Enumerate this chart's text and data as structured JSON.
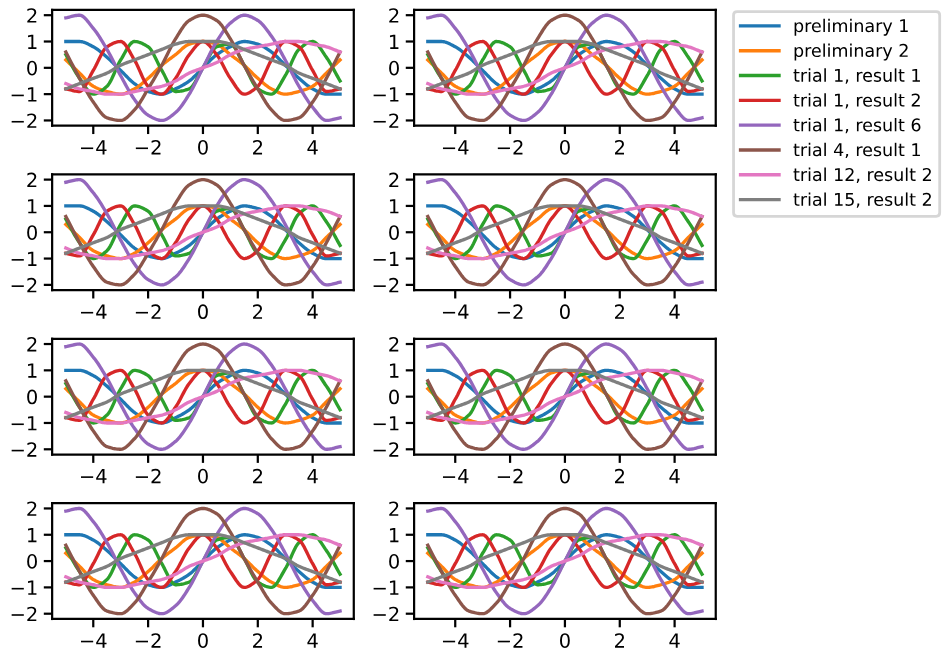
{
  "chart_data": [
    {
      "type": "line",
      "x": [
        -5,
        -4.5,
        -4,
        -3.5,
        -3,
        -2.5,
        -2,
        -1.5,
        -1,
        -0.5,
        0,
        0.5,
        1,
        1.5,
        2,
        2.5,
        3,
        3.5,
        4,
        4.5,
        5
      ],
      "xlim": [
        -5.5,
        5.5
      ],
      "ylim": [
        -2.2,
        2.2
      ],
      "xticks": [
        -4,
        -2,
        0,
        2,
        4
      ],
      "yticks": [
        -2,
        -1,
        0,
        1,
        2
      ],
      "series": [
        {
          "color": "#1f77b4",
          "values": [
            1.0,
            1.0,
            0.8,
            0.4,
            -0.1,
            -0.6,
            -0.9,
            -1.0,
            -0.8,
            -0.5,
            0,
            0.5,
            0.8,
            1.0,
            0.9,
            0.6,
            0.1,
            -0.4,
            -0.8,
            -1.0,
            -1.0
          ]
        },
        {
          "color": "#ff7f0e",
          "values": [
            0.3,
            -0.2,
            -0.7,
            -0.9,
            -1.0,
            -0.8,
            -0.4,
            0.1,
            0.5,
            0.9,
            1.0,
            0.9,
            0.5,
            0.1,
            -0.4,
            -0.8,
            -1.0,
            -0.9,
            -0.7,
            -0.2,
            0.3
          ]
        },
        {
          "color": "#2ca02c",
          "values": [
            0.5,
            -0.4,
            -1.0,
            -0.7,
            0.3,
            1.0,
            0.8,
            -0.1,
            -0.9,
            -0.8,
            0,
            0.8,
            0.9,
            0.1,
            -0.8,
            -1.0,
            -0.3,
            0.7,
            1.0,
            0.4,
            -0.5
          ]
        },
        {
          "color": "#d62728",
          "values": [
            -0.8,
            -0.9,
            -0.1,
            0.8,
            1.0,
            0.3,
            -0.7,
            -1.0,
            -0.4,
            0.5,
            1.0,
            0.5,
            -0.4,
            -1.0,
            -0.7,
            0.3,
            1.0,
            0.8,
            -0.1,
            -0.9,
            -0.8
          ]
        },
        {
          "color": "#9467bd",
          "values": [
            1.9,
            2.0,
            1.5,
            0.7,
            -0.3,
            -1.2,
            -1.8,
            -2.0,
            -1.7,
            -1.0,
            0,
            1.0,
            1.7,
            2.0,
            1.8,
            1.2,
            0.3,
            -0.7,
            -1.5,
            -2.0,
            -1.9
          ]
        },
        {
          "color": "#8c564b",
          "values": [
            0.6,
            -0.4,
            -1.3,
            -1.9,
            -2.0,
            -1.6,
            -0.8,
            0.1,
            1.1,
            1.8,
            2.0,
            1.8,
            1.1,
            0.1,
            -0.8,
            -1.6,
            -2.0,
            -1.9,
            -1.3,
            -0.4,
            0.6
          ]
        },
        {
          "color": "#e377c2",
          "values": [
            -0.6,
            -0.8,
            -0.9,
            -1.0,
            -1.0,
            -0.9,
            -0.8,
            -0.7,
            -0.5,
            -0.2,
            0,
            0.2,
            0.5,
            0.7,
            0.8,
            0.9,
            1.0,
            1.0,
            0.9,
            0.8,
            0.6
          ]
        },
        {
          "color": "#7f7f7f",
          "values": [
            -0.8,
            -0.6,
            -0.4,
            -0.2,
            0.1,
            0.3,
            0.5,
            0.7,
            0.9,
            1.0,
            1.0,
            1.0,
            0.9,
            0.7,
            0.5,
            0.3,
            0.1,
            -0.2,
            -0.4,
            -0.6,
            -0.8
          ]
        }
      ]
    },
    {
      "type": "line",
      "x": [
        -5,
        -4.5,
        -4,
        -3.5,
        -3,
        -2.5,
        -2,
        -1.5,
        -1,
        -0.5,
        0,
        0.5,
        1,
        1.5,
        2,
        2.5,
        3,
        3.5,
        4,
        4.5,
        5
      ],
      "xlim": [
        -5.5,
        5.5
      ],
      "ylim": [
        -2.2,
        2.2
      ],
      "xticks": [
        -4,
        -2,
        0,
        2,
        4
      ],
      "yticks": [
        -2,
        -1,
        0,
        1,
        2
      ],
      "legend": "right",
      "series": [
        {
          "name": "preliminary 1",
          "color": "#1f77b4",
          "values": [
            1.0,
            1.0,
            0.8,
            0.4,
            -0.1,
            -0.6,
            -0.9,
            -1.0,
            -0.8,
            -0.5,
            0,
            0.5,
            0.8,
            1.0,
            0.9,
            0.6,
            0.1,
            -0.4,
            -0.8,
            -1.0,
            -1.0
          ]
        },
        {
          "name": "preliminary 2",
          "color": "#ff7f0e",
          "values": [
            0.3,
            -0.2,
            -0.7,
            -0.9,
            -1.0,
            -0.8,
            -0.4,
            0.1,
            0.5,
            0.9,
            1.0,
            0.9,
            0.5,
            0.1,
            -0.4,
            -0.8,
            -1.0,
            -0.9,
            -0.7,
            -0.2,
            0.3
          ]
        },
        {
          "name": "trial 1, result 1",
          "color": "#2ca02c",
          "values": [
            0.5,
            -0.4,
            -1.0,
            -0.7,
            0.3,
            1.0,
            0.8,
            -0.1,
            -0.9,
            -0.8,
            0,
            0.8,
            0.9,
            0.1,
            -0.8,
            -1.0,
            -0.3,
            0.7,
            1.0,
            0.4,
            -0.5
          ]
        },
        {
          "name": "trial 1, result 2",
          "color": "#d62728",
          "values": [
            -0.8,
            -0.9,
            -0.1,
            0.8,
            1.0,
            0.3,
            -0.7,
            -1.0,
            -0.4,
            0.5,
            1.0,
            0.5,
            -0.4,
            -1.0,
            -0.7,
            0.3,
            1.0,
            0.8,
            -0.1,
            -0.9,
            -0.8
          ]
        },
        {
          "name": "trial 1, result 6",
          "color": "#9467bd",
          "values": [
            1.9,
            2.0,
            1.5,
            0.7,
            -0.3,
            -1.2,
            -1.8,
            -2.0,
            -1.7,
            -1.0,
            0,
            1.0,
            1.7,
            2.0,
            1.8,
            1.2,
            0.3,
            -0.7,
            -1.5,
            -2.0,
            -1.9
          ]
        },
        {
          "name": "trial 4, result 1",
          "color": "#8c564b",
          "values": [
            0.6,
            -0.4,
            -1.3,
            -1.9,
            -2.0,
            -1.6,
            -0.8,
            0.1,
            1.1,
            1.8,
            2.0,
            1.8,
            1.1,
            0.1,
            -0.8,
            -1.6,
            -2.0,
            -1.9,
            -1.3,
            -0.4,
            0.6
          ]
        },
        {
          "name": "trial 12, result 2",
          "color": "#e377c2",
          "values": [
            -0.6,
            -0.8,
            -0.9,
            -1.0,
            -1.0,
            -0.9,
            -0.8,
            -0.7,
            -0.5,
            -0.2,
            0,
            0.2,
            0.5,
            0.7,
            0.8,
            0.9,
            1.0,
            1.0,
            0.9,
            0.8,
            0.6
          ]
        },
        {
          "name": "trial 15, result 2",
          "color": "#7f7f7f",
          "values": [
            -0.8,
            -0.6,
            -0.4,
            -0.2,
            0.1,
            0.3,
            0.5,
            0.7,
            0.9,
            1.0,
            1.0,
            1.0,
            0.9,
            0.7,
            0.5,
            0.3,
            0.1,
            -0.2,
            -0.4,
            -0.6,
            -0.8
          ]
        }
      ]
    },
    {
      "type": "line",
      "x": [
        -5,
        -4.5,
        -4,
        -3.5,
        -3,
        -2.5,
        -2,
        -1.5,
        -1,
        -0.5,
        0,
        0.5,
        1,
        1.5,
        2,
        2.5,
        3,
        3.5,
        4,
        4.5,
        5
      ],
      "xlim": [
        -5.5,
        5.5
      ],
      "ylim": [
        -2.2,
        2.2
      ],
      "xticks": [
        -4,
        -2,
        0,
        2,
        4
      ],
      "yticks": [
        -2,
        -1,
        0,
        1,
        2
      ],
      "series": [
        {
          "color": "#1f77b4",
          "values": [
            1.0,
            1.0,
            0.8,
            0.4,
            -0.1,
            -0.6,
            -0.9,
            -1.0,
            -0.8,
            -0.5,
            0,
            0.5,
            0.8,
            1.0,
            0.9,
            0.6,
            0.1,
            -0.4,
            -0.8,
            -1.0,
            -1.0
          ]
        },
        {
          "color": "#ff7f0e",
          "values": [
            0.3,
            -0.2,
            -0.7,
            -0.9,
            -1.0,
            -0.8,
            -0.4,
            0.1,
            0.5,
            0.9,
            1.0,
            0.9,
            0.5,
            0.1,
            -0.4,
            -0.8,
            -1.0,
            -0.9,
            -0.7,
            -0.2,
            0.3
          ]
        },
        {
          "color": "#2ca02c",
          "values": [
            0.5,
            -0.4,
            -1.0,
            -0.7,
            0.3,
            1.0,
            0.8,
            -0.1,
            -0.9,
            -0.8,
            0,
            0.8,
            0.9,
            0.1,
            -0.8,
            -1.0,
            -0.3,
            0.7,
            1.0,
            0.4,
            -0.5
          ]
        },
        {
          "color": "#d62728",
          "values": [
            -0.8,
            -0.9,
            -0.1,
            0.8,
            1.0,
            0.3,
            -0.7,
            -1.0,
            -0.4,
            0.5,
            1.0,
            0.5,
            -0.4,
            -1.0,
            -0.7,
            0.3,
            1.0,
            0.8,
            -0.1,
            -0.9,
            -0.8
          ]
        },
        {
          "color": "#9467bd",
          "values": [
            1.9,
            2.0,
            1.5,
            0.7,
            -0.3,
            -1.2,
            -1.8,
            -2.0,
            -1.7,
            -1.0,
            0,
            1.0,
            1.7,
            2.0,
            1.8,
            1.2,
            0.3,
            -0.7,
            -1.5,
            -2.0,
            -1.9
          ]
        },
        {
          "color": "#8c564b",
          "values": [
            0.6,
            -0.4,
            -1.3,
            -1.9,
            -2.0,
            -1.6,
            -0.8,
            0.1,
            1.1,
            1.8,
            2.0,
            1.8,
            1.1,
            0.1,
            -0.8,
            -1.6,
            -2.0,
            -1.9,
            -1.3,
            -0.4,
            0.6
          ]
        },
        {
          "color": "#e377c2",
          "values": [
            -0.6,
            -0.8,
            -0.9,
            -1.0,
            -1.0,
            -0.9,
            -0.8,
            -0.7,
            -0.5,
            -0.2,
            0,
            0.2,
            0.5,
            0.7,
            0.8,
            0.9,
            1.0,
            1.0,
            0.9,
            0.8,
            0.6
          ]
        },
        {
          "color": "#7f7f7f",
          "values": [
            -0.8,
            -0.6,
            -0.4,
            -0.2,
            0.1,
            0.3,
            0.5,
            0.7,
            0.9,
            1.0,
            1.0,
            1.0,
            0.9,
            0.7,
            0.5,
            0.3,
            0.1,
            -0.2,
            -0.4,
            -0.6,
            -0.8
          ]
        }
      ]
    },
    {
      "type": "line",
      "x": [
        -5,
        -4.5,
        -4,
        -3.5,
        -3,
        -2.5,
        -2,
        -1.5,
        -1,
        -0.5,
        0,
        0.5,
        1,
        1.5,
        2,
        2.5,
        3,
        3.5,
        4,
        4.5,
        5
      ],
      "xlim": [
        -5.5,
        5.5
      ],
      "ylim": [
        -2.2,
        2.2
      ],
      "xticks": [
        -4,
        -2,
        0,
        2,
        4
      ],
      "yticks": [
        -2,
        -1,
        0,
        1,
        2
      ],
      "series": [
        {
          "color": "#1f77b4",
          "values": [
            1.0,
            1.0,
            0.8,
            0.4,
            -0.1,
            -0.6,
            -0.9,
            -1.0,
            -0.8,
            -0.5,
            0,
            0.5,
            0.8,
            1.0,
            0.9,
            0.6,
            0.1,
            -0.4,
            -0.8,
            -1.0,
            -1.0
          ]
        },
        {
          "color": "#ff7f0e",
          "values": [
            0.3,
            -0.2,
            -0.7,
            -0.9,
            -1.0,
            -0.8,
            -0.4,
            0.1,
            0.5,
            0.9,
            1.0,
            0.9,
            0.5,
            0.1,
            -0.4,
            -0.8,
            -1.0,
            -0.9,
            -0.7,
            -0.2,
            0.3
          ]
        },
        {
          "color": "#2ca02c",
          "values": [
            0.5,
            -0.4,
            -1.0,
            -0.7,
            0.3,
            1.0,
            0.8,
            -0.1,
            -0.9,
            -0.8,
            0,
            0.8,
            0.9,
            0.1,
            -0.8,
            -1.0,
            -0.3,
            0.7,
            1.0,
            0.4,
            -0.5
          ]
        },
        {
          "color": "#d62728",
          "values": [
            -0.8,
            -0.9,
            -0.1,
            0.8,
            1.0,
            0.3,
            -0.7,
            -1.0,
            -0.4,
            0.5,
            1.0,
            0.5,
            -0.4,
            -1.0,
            -0.7,
            0.3,
            1.0,
            0.8,
            -0.1,
            -0.9,
            -0.8
          ]
        },
        {
          "color": "#9467bd",
          "values": [
            1.9,
            2.0,
            1.5,
            0.7,
            -0.3,
            -1.2,
            -1.8,
            -2.0,
            -1.7,
            -1.0,
            0,
            1.0,
            1.7,
            2.0,
            1.8,
            1.2,
            0.3,
            -0.7,
            -1.5,
            -2.0,
            -1.9
          ]
        },
        {
          "color": "#8c564b",
          "values": [
            0.6,
            -0.4,
            -1.3,
            -1.9,
            -2.0,
            -1.6,
            -0.8,
            0.1,
            1.1,
            1.8,
            2.0,
            1.8,
            1.1,
            0.1,
            -0.8,
            -1.6,
            -2.0,
            -1.9,
            -1.3,
            -0.4,
            0.6
          ]
        },
        {
          "color": "#e377c2",
          "values": [
            -0.6,
            -0.8,
            -0.9,
            -1.0,
            -1.0,
            -0.9,
            -0.8,
            -0.7,
            -0.5,
            -0.2,
            0,
            0.2,
            0.5,
            0.7,
            0.8,
            0.9,
            1.0,
            1.0,
            0.9,
            0.8,
            0.6
          ]
        },
        {
          "color": "#7f7f7f",
          "values": [
            -0.8,
            -0.6,
            -0.4,
            -0.2,
            0.1,
            0.3,
            0.5,
            0.7,
            0.9,
            1.0,
            1.0,
            1.0,
            0.9,
            0.7,
            0.5,
            0.3,
            0.1,
            -0.2,
            -0.4,
            -0.6,
            -0.8
          ]
        }
      ]
    },
    {
      "type": "line",
      "x": [
        -5,
        -4.5,
        -4,
        -3.5,
        -3,
        -2.5,
        -2,
        -1.5,
        -1,
        -0.5,
        0,
        0.5,
        1,
        1.5,
        2,
        2.5,
        3,
        3.5,
        4,
        4.5,
        5
      ],
      "xlim": [
        -5.5,
        5.5
      ],
      "ylim": [
        -2.2,
        2.2
      ],
      "xticks": [
        -4,
        -2,
        0,
        2,
        4
      ],
      "yticks": [
        -2,
        -1,
        0,
        1,
        2
      ],
      "series": [
        {
          "color": "#1f77b4",
          "values": [
            1.0,
            1.0,
            0.8,
            0.4,
            -0.1,
            -0.6,
            -0.9,
            -1.0,
            -0.8,
            -0.5,
            0,
            0.5,
            0.8,
            1.0,
            0.9,
            0.6,
            0.1,
            -0.4,
            -0.8,
            -1.0,
            -1.0
          ]
        },
        {
          "color": "#ff7f0e",
          "values": [
            0.3,
            -0.2,
            -0.7,
            -0.9,
            -1.0,
            -0.8,
            -0.4,
            0.1,
            0.5,
            0.9,
            1.0,
            0.9,
            0.5,
            0.1,
            -0.4,
            -0.8,
            -1.0,
            -0.9,
            -0.7,
            -0.2,
            0.3
          ]
        },
        {
          "color": "#2ca02c",
          "values": [
            0.5,
            -0.4,
            -1.0,
            -0.7,
            0.3,
            1.0,
            0.8,
            -0.1,
            -0.9,
            -0.8,
            0,
            0.8,
            0.9,
            0.1,
            -0.8,
            -1.0,
            -0.3,
            0.7,
            1.0,
            0.4,
            -0.5
          ]
        },
        {
          "color": "#d62728",
          "values": [
            -0.8,
            -0.9,
            -0.1,
            0.8,
            1.0,
            0.3,
            -0.7,
            -1.0,
            -0.4,
            0.5,
            1.0,
            0.5,
            -0.4,
            -1.0,
            -0.7,
            0.3,
            1.0,
            0.8,
            -0.1,
            -0.9,
            -0.8
          ]
        },
        {
          "color": "#9467bd",
          "values": [
            1.9,
            2.0,
            1.5,
            0.7,
            -0.3,
            -1.2,
            -1.8,
            -2.0,
            -1.7,
            -1.0,
            0,
            1.0,
            1.7,
            2.0,
            1.8,
            1.2,
            0.3,
            -0.7,
            -1.5,
            -2.0,
            -1.9
          ]
        },
        {
          "color": "#8c564b",
          "values": [
            0.6,
            -0.4,
            -1.3,
            -1.9,
            -2.0,
            -1.6,
            -0.8,
            0.1,
            1.1,
            1.8,
            2.0,
            1.8,
            1.1,
            0.1,
            -0.8,
            -1.6,
            -2.0,
            -1.9,
            -1.3,
            -0.4,
            0.6
          ]
        },
        {
          "color": "#e377c2",
          "values": [
            -0.6,
            -0.8,
            -0.9,
            -1.0,
            -1.0,
            -0.9,
            -0.8,
            -0.7,
            -0.5,
            -0.2,
            0,
            0.2,
            0.5,
            0.7,
            0.8,
            0.9,
            1.0,
            1.0,
            0.9,
            0.8,
            0.6
          ]
        },
        {
          "color": "#7f7f7f",
          "values": [
            -0.8,
            -0.6,
            -0.4,
            -0.2,
            0.1,
            0.3,
            0.5,
            0.7,
            0.9,
            1.0,
            1.0,
            1.0,
            0.9,
            0.7,
            0.5,
            0.3,
            0.1,
            -0.2,
            -0.4,
            -0.6,
            -0.8
          ]
        }
      ]
    },
    {
      "type": "line",
      "x": [
        -5,
        -4.5,
        -4,
        -3.5,
        -3,
        -2.5,
        -2,
        -1.5,
        -1,
        -0.5,
        0,
        0.5,
        1,
        1.5,
        2,
        2.5,
        3,
        3.5,
        4,
        4.5,
        5
      ],
      "xlim": [
        -5.5,
        5.5
      ],
      "ylim": [
        -2.2,
        2.2
      ],
      "xticks": [
        -4,
        -2,
        0,
        2,
        4
      ],
      "yticks": [
        -2,
        -1,
        0,
        1,
        2
      ],
      "series": [
        {
          "color": "#1f77b4",
          "values": [
            1.0,
            1.0,
            0.8,
            0.4,
            -0.1,
            -0.6,
            -0.9,
            -1.0,
            -0.8,
            -0.5,
            0,
            0.5,
            0.8,
            1.0,
            0.9,
            0.6,
            0.1,
            -0.4,
            -0.8,
            -1.0,
            -1.0
          ]
        },
        {
          "color": "#ff7f0e",
          "values": [
            0.3,
            -0.2,
            -0.7,
            -0.9,
            -1.0,
            -0.8,
            -0.4,
            0.1,
            0.5,
            0.9,
            1.0,
            0.9,
            0.5,
            0.1,
            -0.4,
            -0.8,
            -1.0,
            -0.9,
            -0.7,
            -0.2,
            0.3
          ]
        },
        {
          "color": "#2ca02c",
          "values": [
            0.5,
            -0.4,
            -1.0,
            -0.7,
            0.3,
            1.0,
            0.8,
            -0.1,
            -0.9,
            -0.8,
            0,
            0.8,
            0.9,
            0.1,
            -0.8,
            -1.0,
            -0.3,
            0.7,
            1.0,
            0.4,
            -0.5
          ]
        },
        {
          "color": "#d62728",
          "values": [
            -0.8,
            -0.9,
            -0.1,
            0.8,
            1.0,
            0.3,
            -0.7,
            -1.0,
            -0.4,
            0.5,
            1.0,
            0.5,
            -0.4,
            -1.0,
            -0.7,
            0.3,
            1.0,
            0.8,
            -0.1,
            -0.9,
            -0.8
          ]
        },
        {
          "color": "#9467bd",
          "values": [
            1.9,
            2.0,
            1.5,
            0.7,
            -0.3,
            -1.2,
            -1.8,
            -2.0,
            -1.7,
            -1.0,
            0,
            1.0,
            1.7,
            2.0,
            1.8,
            1.2,
            0.3,
            -0.7,
            -1.5,
            -2.0,
            -1.9
          ]
        },
        {
          "color": "#8c564b",
          "values": [
            0.6,
            -0.4,
            -1.3,
            -1.9,
            -2.0,
            -1.6,
            -0.8,
            0.1,
            1.1,
            1.8,
            2.0,
            1.8,
            1.1,
            0.1,
            -0.8,
            -1.6,
            -2.0,
            -1.9,
            -1.3,
            -0.4,
            0.6
          ]
        },
        {
          "color": "#e377c2",
          "values": [
            -0.6,
            -0.8,
            -0.9,
            -1.0,
            -1.0,
            -0.9,
            -0.8,
            -0.7,
            -0.5,
            -0.2,
            0,
            0.2,
            0.5,
            0.7,
            0.8,
            0.9,
            1.0,
            1.0,
            0.9,
            0.8,
            0.6
          ]
        },
        {
          "color": "#7f7f7f",
          "values": [
            -0.8,
            -0.6,
            -0.4,
            -0.2,
            0.1,
            0.3,
            0.5,
            0.7,
            0.9,
            1.0,
            1.0,
            1.0,
            0.9,
            0.7,
            0.5,
            0.3,
            0.1,
            -0.2,
            -0.4,
            -0.6,
            -0.8
          ]
        }
      ]
    },
    {
      "type": "line",
      "x": [
        -5,
        -4.5,
        -4,
        -3.5,
        -3,
        -2.5,
        -2,
        -1.5,
        -1,
        -0.5,
        0,
        0.5,
        1,
        1.5,
        2,
        2.5,
        3,
        3.5,
        4,
        4.5,
        5
      ],
      "xlim": [
        -5.5,
        5.5
      ],
      "ylim": [
        -2.2,
        2.2
      ],
      "xticks": [
        -4,
        -2,
        0,
        2,
        4
      ],
      "yticks": [
        -2,
        -1,
        0,
        1,
        2
      ],
      "series": [
        {
          "color": "#1f77b4",
          "values": [
            1.0,
            1.0,
            0.8,
            0.4,
            -0.1,
            -0.6,
            -0.9,
            -1.0,
            -0.8,
            -0.5,
            0,
            0.5,
            0.8,
            1.0,
            0.9,
            0.6,
            0.1,
            -0.4,
            -0.8,
            -1.0,
            -1.0
          ]
        },
        {
          "color": "#ff7f0e",
          "values": [
            0.3,
            -0.2,
            -0.7,
            -0.9,
            -1.0,
            -0.8,
            -0.4,
            0.1,
            0.5,
            0.9,
            1.0,
            0.9,
            0.5,
            0.1,
            -0.4,
            -0.8,
            -1.0,
            -0.9,
            -0.7,
            -0.2,
            0.3
          ]
        },
        {
          "color": "#2ca02c",
          "values": [
            0.5,
            -0.4,
            -1.0,
            -0.7,
            0.3,
            1.0,
            0.8,
            -0.1,
            -0.9,
            -0.8,
            0,
            0.8,
            0.9,
            0.1,
            -0.8,
            -1.0,
            -0.3,
            0.7,
            1.0,
            0.4,
            -0.5
          ]
        },
        {
          "color": "#d62728",
          "values": [
            -0.8,
            -0.9,
            -0.1,
            0.8,
            1.0,
            0.3,
            -0.7,
            -1.0,
            -0.4,
            0.5,
            1.0,
            0.5,
            -0.4,
            -1.0,
            -0.7,
            0.3,
            1.0,
            0.8,
            -0.1,
            -0.9,
            -0.8
          ]
        },
        {
          "color": "#9467bd",
          "values": [
            1.9,
            2.0,
            1.5,
            0.7,
            -0.3,
            -1.2,
            -1.8,
            -2.0,
            -1.7,
            -1.0,
            0,
            1.0,
            1.7,
            2.0,
            1.8,
            1.2,
            0.3,
            -0.7,
            -1.5,
            -2.0,
            -1.9
          ]
        },
        {
          "color": "#8c564b",
          "values": [
            0.6,
            -0.4,
            -1.3,
            -1.9,
            -2.0,
            -1.6,
            -0.8,
            0.1,
            1.1,
            1.8,
            2.0,
            1.8,
            1.1,
            0.1,
            -0.8,
            -1.6,
            -2.0,
            -1.9,
            -1.3,
            -0.4,
            0.6
          ]
        },
        {
          "color": "#e377c2",
          "values": [
            -0.6,
            -0.8,
            -0.9,
            -1.0,
            -1.0,
            -0.9,
            -0.8,
            -0.7,
            -0.5,
            -0.2,
            0,
            0.2,
            0.5,
            0.7,
            0.8,
            0.9,
            1.0,
            1.0,
            0.9,
            0.8,
            0.6
          ]
        },
        {
          "color": "#7f7f7f",
          "values": [
            -0.8,
            -0.6,
            -0.4,
            -0.2,
            0.1,
            0.3,
            0.5,
            0.7,
            0.9,
            1.0,
            1.0,
            1.0,
            0.9,
            0.7,
            0.5,
            0.3,
            0.1,
            -0.2,
            -0.4,
            -0.6,
            -0.8
          ]
        }
      ]
    },
    {
      "type": "line",
      "x": [
        -5,
        -4.5,
        -4,
        -3.5,
        -3,
        -2.5,
        -2,
        -1.5,
        -1,
        -0.5,
        0,
        0.5,
        1,
        1.5,
        2,
        2.5,
        3,
        3.5,
        4,
        4.5,
        5
      ],
      "xlim": [
        -5.5,
        5.5
      ],
      "ylim": [
        -2.2,
        2.2
      ],
      "xticks": [
        -4,
        -2,
        0,
        2,
        4
      ],
      "yticks": [
        -2,
        -1,
        0,
        1,
        2
      ],
      "series": [
        {
          "color": "#1f77b4",
          "values": [
            1.0,
            1.0,
            0.8,
            0.4,
            -0.1,
            -0.6,
            -0.9,
            -1.0,
            -0.8,
            -0.5,
            0,
            0.5,
            0.8,
            1.0,
            0.9,
            0.6,
            0.1,
            -0.4,
            -0.8,
            -1.0,
            -1.0
          ]
        },
        {
          "color": "#ff7f0e",
          "values": [
            0.3,
            -0.2,
            -0.7,
            -0.9,
            -1.0,
            -0.8,
            -0.4,
            0.1,
            0.5,
            0.9,
            1.0,
            0.9,
            0.5,
            0.1,
            -0.4,
            -0.8,
            -1.0,
            -0.9,
            -0.7,
            -0.2,
            0.3
          ]
        },
        {
          "color": "#2ca02c",
          "values": [
            0.5,
            -0.4,
            -1.0,
            -0.7,
            0.3,
            1.0,
            0.8,
            -0.1,
            -0.9,
            -0.8,
            0,
            0.8,
            0.9,
            0.1,
            -0.8,
            -1.0,
            -0.3,
            0.7,
            1.0,
            0.4,
            -0.5
          ]
        },
        {
          "color": "#d62728",
          "values": [
            -0.8,
            -0.9,
            -0.1,
            0.8,
            1.0,
            0.3,
            -0.7,
            -1.0,
            -0.4,
            0.5,
            1.0,
            0.5,
            -0.4,
            -1.0,
            -0.7,
            0.3,
            1.0,
            0.8,
            -0.1,
            -0.9,
            -0.8
          ]
        },
        {
          "color": "#9467bd",
          "values": [
            1.9,
            2.0,
            1.5,
            0.7,
            -0.3,
            -1.2,
            -1.8,
            -2.0,
            -1.7,
            -1.0,
            0,
            1.0,
            1.7,
            2.0,
            1.8,
            1.2,
            0.3,
            -0.7,
            -1.5,
            -2.0,
            -1.9
          ]
        },
        {
          "color": "#8c564b",
          "values": [
            0.6,
            -0.4,
            -1.3,
            -1.9,
            -2.0,
            -1.6,
            -0.8,
            0.1,
            1.1,
            1.8,
            2.0,
            1.8,
            1.1,
            0.1,
            -0.8,
            -1.6,
            -2.0,
            -1.9,
            -1.3,
            -0.4,
            0.6
          ]
        },
        {
          "color": "#e377c2",
          "values": [
            -0.6,
            -0.8,
            -0.9,
            -1.0,
            -1.0,
            -0.9,
            -0.8,
            -0.7,
            -0.5,
            -0.2,
            0,
            0.2,
            0.5,
            0.7,
            0.8,
            0.9,
            1.0,
            1.0,
            0.9,
            0.8,
            0.6
          ]
        },
        {
          "color": "#7f7f7f",
          "values": [
            -0.8,
            -0.6,
            -0.4,
            -0.2,
            0.1,
            0.3,
            0.5,
            0.7,
            0.9,
            1.0,
            1.0,
            1.0,
            0.9,
            0.7,
            0.5,
            0.3,
            0.1,
            -0.2,
            -0.4,
            -0.6,
            -0.8
          ]
        }
      ]
    }
  ]
}
